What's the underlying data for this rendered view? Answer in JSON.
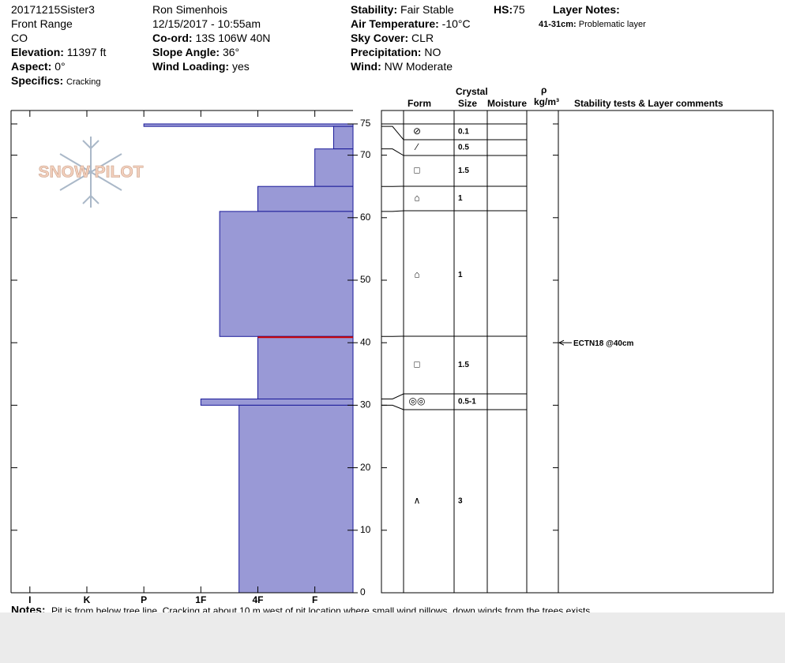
{
  "header": {
    "col1": [
      "20171215Sister3",
      "Front Range",
      "CO"
    ],
    "col1_fields": [
      [
        "Elevation:",
        "11397 ft"
      ],
      [
        "Aspect:",
        "0°"
      ],
      [
        "Specifics:",
        "Cracking"
      ]
    ],
    "col2": [
      "Ron Simenhois",
      "12/15/2017 - 10:55am"
    ],
    "col2_fields": [
      [
        "Co-ord:",
        "13S 106W 40N"
      ],
      [
        "Slope Angle:",
        "36°"
      ],
      [
        "Wind Loading:",
        "yes"
      ]
    ],
    "col3_fields": [
      [
        "Stability:",
        "Fair Stable"
      ],
      [
        "Air Temperature:",
        "-10°C"
      ],
      [
        "Sky Cover:",
        "CLR"
      ],
      [
        "Precipitation:",
        "NO"
      ],
      [
        "Wind:",
        "NW Moderate"
      ]
    ],
    "hs": [
      "HS:",
      75
    ],
    "layer_notes_title": "Layer Notes:",
    "layer_note": [
      "41-31cm:",
      "Problematic layer"
    ]
  },
  "chart_data": {
    "type": "snow-profile",
    "logo": "SNOW PILOT",
    "color": "#9999d6",
    "edge_color": "#1a1a99",
    "problem_color": "#cc0000",
    "ylim": [
      0,
      75
    ],
    "yticks": [
      0,
      10,
      20,
      30,
      40,
      50,
      60,
      70,
      75
    ],
    "xlim": [
      6.33,
      0.33
    ],
    "xticks": [
      {
        "value": 6,
        "label": "I"
      },
      {
        "value": 5,
        "label": "K"
      },
      {
        "value": 4,
        "label": "P"
      },
      {
        "value": 3,
        "label": "1F"
      },
      {
        "value": 2,
        "label": "4F"
      },
      {
        "value": 1,
        "label": "F"
      }
    ],
    "layers": [
      {
        "top": 75,
        "bottom": 74.6,
        "hardness": 4
      },
      {
        "top": 74.6,
        "bottom": 71,
        "hardness": 0.67
      },
      {
        "top": 71,
        "bottom": 65,
        "hardness": 1
      },
      {
        "top": 65,
        "bottom": 61,
        "hardness": 2
      },
      {
        "top": 61,
        "bottom": 41,
        "hardness": 2.67
      },
      {
        "top": 41,
        "bottom": 31,
        "hardness": 2
      },
      {
        "top": 31,
        "bottom": 30,
        "hardness": 3
      },
      {
        "top": 30,
        "bottom": 0,
        "hardness": 2.33
      }
    ],
    "problem_layer": 5,
    "table": {
      "headers": {
        "crystal": "Crystal",
        "form": "Form",
        "size": "Size",
        "moisture": "Moisture",
        "density_symbol": "ρ",
        "density_unit": "kg/m³",
        "comments": "Stability tests & Layer comments"
      },
      "rows": [
        {
          "form": "⊘",
          "size": "0.1"
        },
        {
          "form": "∕",
          "size": "0.5"
        },
        {
          "form": "□",
          "size": "1.5"
        },
        {
          "form": "⌂",
          "size": "1"
        },
        {
          "form": "⌂",
          "size": "1"
        },
        {
          "form": "□",
          "size": "1.5"
        },
        {
          "form": "◎◎",
          "size": "0.5-1"
        },
        {
          "form": "∧",
          "size": "3"
        }
      ]
    },
    "stability_tests": [
      {
        "label": "ECTN18 @40cm",
        "depth": 40
      }
    ]
  },
  "notes": {
    "label": "Notes:",
    "text": "Pit is from below tree line.  Cracking at about 10 m west of pit location where small wind pillows, down winds from the trees exists."
  }
}
